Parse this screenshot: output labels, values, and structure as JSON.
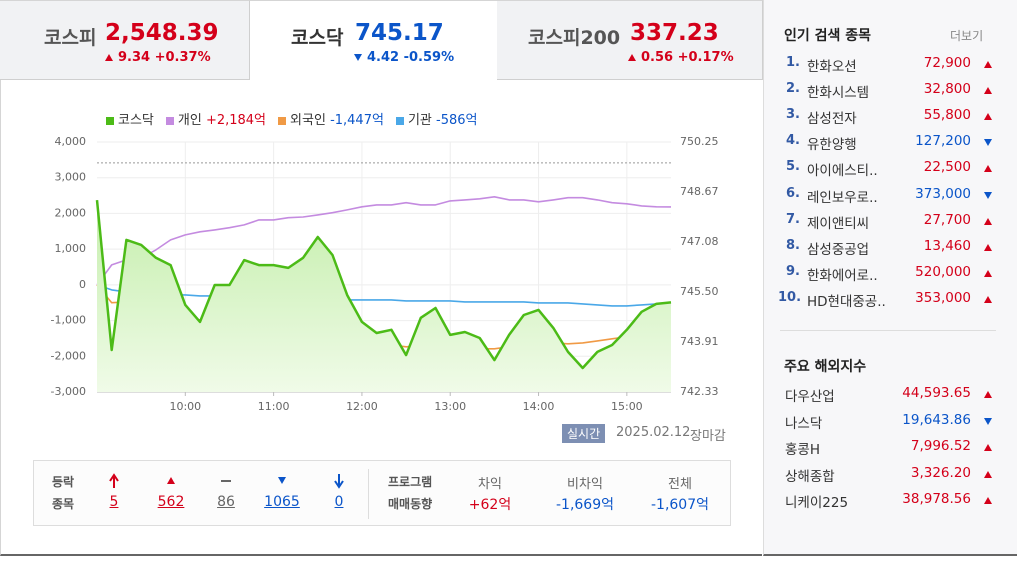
{
  "tabs": [
    {
      "name": "코스피",
      "value": "2,548.39",
      "change": "9.34",
      "percent": "+0.37%",
      "trend": "up"
    },
    {
      "name": "코스닥",
      "value": "745.17",
      "change": "4.42",
      "percent": "-0.59%",
      "trend": "down"
    },
    {
      "name": "코스피200",
      "value": "337.23",
      "change": "0.56",
      "percent": "+0.17%",
      "trend": "up"
    }
  ],
  "chart_data": {
    "type": "line",
    "x": [
      "09:00",
      "09:10",
      "09:20",
      "09:30",
      "09:40",
      "09:50",
      "10:00",
      "10:10",
      "10:20",
      "10:30",
      "10:40",
      "10:50",
      "11:00",
      "11:10",
      "11:20",
      "11:30",
      "11:40",
      "11:50",
      "12:00",
      "12:10",
      "12:20",
      "12:30",
      "12:40",
      "12:50",
      "13:00",
      "13:10",
      "13:20",
      "13:30",
      "13:40",
      "13:50",
      "14:00",
      "14:10",
      "14:20",
      "14:30",
      "14:40",
      "14:50",
      "15:00",
      "15:10",
      "15:20",
      "15:30"
    ],
    "xlim": [
      "09:00",
      "15:30"
    ],
    "xticks": [
      "10:00",
      "11:00",
      "12:00",
      "13:00",
      "14:00",
      "15:00"
    ],
    "ylim": [
      -3000,
      4000
    ],
    "yticks": [
      {
        "value": -3000,
        "label": "-3,000"
      },
      {
        "value": -2000,
        "label": "-2,000"
      },
      {
        "value": -1000,
        "label": "-1,000"
      },
      0,
      {
        "value": 1000,
        "label": "1,000"
      },
      {
        "value": 2000,
        "label": "2,000"
      },
      {
        "value": 3000,
        "label": "3,000"
      },
      {
        "value": 4000,
        "label": "4,000"
      }
    ],
    "y2lim": [
      742.33,
      750.25
    ],
    "y2ticks": [
      742.33,
      743.91,
      {
        "value": 745.5,
        "label": "745.50"
      },
      747.08,
      748.67,
      750.25
    ],
    "grid": true,
    "reference_line": {
      "value": 749.59,
      "axis": "y2",
      "color": "#999999"
    },
    "series": [
      {
        "name": "코스닥",
        "color": "#4cbb17",
        "axis": "y2",
        "area": true,
        "values": [
          748.41,
          743.66,
          747.15,
          746.99,
          746.58,
          746.35,
          745.09,
          744.55,
          745.72,
          745.72,
          746.51,
          746.35,
          746.35,
          746.26,
          746.58,
          747.24,
          746.67,
          745.4,
          744.55,
          744.2,
          744.3,
          743.5,
          744.68,
          744.99,
          744.14,
          744.23,
          744.04,
          743.34,
          744.14,
          744.77,
          744.93,
          744.36,
          743.6,
          743.09,
          743.6,
          743.82,
          744.3,
          744.87,
          745.12,
          745.17
        ]
      },
      {
        "name": "개인",
        "color": "#c48be0",
        "legend_value": "+2,184억",
        "legend_color": "#d4001a",
        "values": [
          0,
          560,
          700,
          756,
          980,
          1260,
          1400,
          1485,
          1540,
          1600,
          1680,
          1820,
          1820,
          1880,
          1900,
          1960,
          2020,
          2100,
          2185,
          2240,
          2240,
          2300,
          2240,
          2240,
          2350,
          2380,
          2410,
          2465,
          2380,
          2380,
          2325,
          2380,
          2440,
          2440,
          2380,
          2300,
          2270,
          2210,
          2185,
          2184
        ]
      },
      {
        "name": "외국인",
        "color": "#f09a45",
        "legend_value": "-1,447억",
        "legend_color": "#0b55c9",
        "values": [
          0,
          -500,
          -480,
          -560,
          -640,
          -840,
          -920,
          -980,
          -1040,
          -1120,
          -1180,
          -1200,
          -1260,
          -1345,
          -1345,
          -1400,
          -1430,
          -1540,
          -1625,
          -1680,
          -1680,
          -1735,
          -1710,
          -1735,
          -1765,
          -1765,
          -1790,
          -1790,
          -1735,
          -1680,
          -1650,
          -1625,
          -1650,
          -1625,
          -1570,
          -1510,
          -1455,
          -1400,
          -1430,
          -1447
        ]
      },
      {
        "name": "기관",
        "color": "#4aa8e8",
        "legend_value": "-586억",
        "legend_color": "#0b55c9",
        "values": [
          0,
          -140,
          -196,
          -224,
          -252,
          -280,
          -280,
          -308,
          -308,
          -336,
          -336,
          -364,
          -364,
          -364,
          -392,
          -392,
          -392,
          -420,
          -420,
          -420,
          -420,
          -448,
          -448,
          -448,
          -448,
          -476,
          -476,
          -476,
          -476,
          -476,
          -504,
          -504,
          -504,
          -532,
          -560,
          -588,
          -588,
          -560,
          -532,
          -586
        ]
      }
    ]
  },
  "status": {
    "badge": "실시간",
    "date": "2025.02.12",
    "state": "장마감"
  },
  "breadth": {
    "label": [
      "등락",
      "종목"
    ],
    "values": [
      5,
      562,
      86,
      1065,
      0
    ]
  },
  "program": {
    "label": [
      "프로그램",
      "매매동향"
    ],
    "columns": [
      {
        "name": "차익",
        "value": "+62억",
        "trend": "up"
      },
      {
        "name": "비차익",
        "value": "-1,669억",
        "trend": "down"
      },
      {
        "name": "전체",
        "value": "-1,607억",
        "trend": "down"
      }
    ]
  },
  "popular": {
    "title": "인기 검색 종목",
    "more": "더보기",
    "items": [
      {
        "rank": "1.",
        "name": "한화오션",
        "price": "72,900",
        "trend": "up"
      },
      {
        "rank": "2.",
        "name": "한화시스템",
        "price": "32,800",
        "trend": "up"
      },
      {
        "rank": "3.",
        "name": "삼성전자",
        "price": "55,800",
        "trend": "up"
      },
      {
        "rank": "4.",
        "name": "유한양행",
        "price": "127,200",
        "trend": "down"
      },
      {
        "rank": "5.",
        "name": "아이에스티..",
        "price": "22,500",
        "trend": "up"
      },
      {
        "rank": "6.",
        "name": "레인보우로..",
        "price": "373,000",
        "trend": "down"
      },
      {
        "rank": "7.",
        "name": "제이앤티씨",
        "price": "27,700",
        "trend": "up"
      },
      {
        "rank": "8.",
        "name": "삼성중공업",
        "price": "13,460",
        "trend": "up"
      },
      {
        "rank": "9.",
        "name": "한화에어로..",
        "price": "520,000",
        "trend": "up"
      },
      {
        "rank": "10.",
        "name": "HD현대중공..",
        "price": "353,000",
        "trend": "up"
      }
    ]
  },
  "world": {
    "title": "주요 해외지수",
    "items": [
      {
        "name": "다우산업",
        "value": "44,593.65",
        "trend": "up"
      },
      {
        "name": "나스닥",
        "value": "19,643.86",
        "trend": "down"
      },
      {
        "name": "홍콩H",
        "value": "7,996.52",
        "trend": "up"
      },
      {
        "name": "상해종합",
        "value": "3,326.20",
        "trend": "up"
      },
      {
        "name": "니케이225",
        "value": "38,978.56",
        "trend": "up"
      }
    ]
  }
}
